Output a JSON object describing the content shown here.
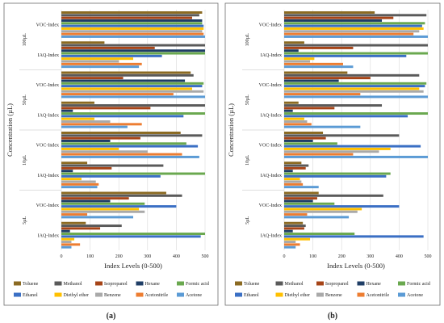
{
  "chart_data": [
    {
      "type": "bar",
      "orientation": "horizontal",
      "panel_label": "(a)",
      "xlabel": "Index Levels (0-500)",
      "ylabel": "Concentration (µL)",
      "xlim": [
        0,
        500
      ],
      "x_ticks": [
        0,
        100,
        200,
        300,
        400,
        500
      ],
      "grid": true,
      "legend_position": "bottom",
      "series_names": [
        "Toluene",
        "Methanol",
        "Isopropanol",
        "Hexane",
        "Formic acid",
        "Ethanol",
        "Diethyl ether",
        "Benzene",
        "Acetonitrile",
        "Acetone"
      ],
      "groups": [
        {
          "label": "100µL",
          "metrics": [
            {
              "name": "VOC-Index",
              "values": [
                490,
                480,
                455,
                490,
                490,
                495,
                495,
                490,
                495,
                500
              ]
            },
            {
              "name": "IAQ-Index",
              "values": [
                150,
                500,
                325,
                500,
                500,
                350,
                250,
                200,
                280,
                270
              ]
            }
          ]
        },
        {
          "label": "50µL",
          "metrics": [
            {
              "name": "VOC-Index",
              "values": [
                450,
                460,
                215,
                430,
                495,
                490,
                455,
                495,
                390,
                500
              ]
            },
            {
              "name": "IAQ-Index",
              "values": [
                115,
                500,
                310,
                40,
                500,
                425,
                115,
                170,
                280,
                230
              ]
            }
          ]
        },
        {
          "label": "10µL",
          "metrics": [
            {
              "name": "VOC-Index",
              "values": [
                415,
                490,
                275,
                170,
                435,
                475,
                200,
                300,
                420,
                480
              ]
            },
            {
              "name": "IAQ-Index",
              "values": [
                90,
                355,
                175,
                40,
                500,
                345,
                70,
                120,
                130,
                125
              ]
            }
          ]
        },
        {
          "label": "5µL",
          "metrics": [
            {
              "name": "VOC-Index",
              "values": [
                365,
                420,
                235,
                170,
                290,
                400,
                270,
                290,
                90,
                250
              ]
            },
            {
              "name": "IAQ-Index",
              "values": [
                85,
                210,
                135,
                30,
                500,
                485,
                45,
                35,
                65,
                35
              ]
            }
          ]
        }
      ]
    },
    {
      "type": "bar",
      "orientation": "horizontal",
      "panel_label": "(b)",
      "xlabel": "Index Levels (0-500)",
      "ylabel": "Concentration (µL)",
      "xlim": [
        0,
        500
      ],
      "x_ticks": [
        0,
        100,
        200,
        300,
        400,
        500
      ],
      "grid": true,
      "legend_position": "bottom",
      "series_names": [
        "Toluene",
        "Methanol",
        "Isopropanol",
        "Hexane",
        "Formic acid",
        "Ethanol",
        "Diethyl ether",
        "Benzene",
        "Acetonitrile",
        "Acetone"
      ],
      "groups": [
        {
          "label": "100µL",
          "metrics": [
            {
              "name": "VOC-Index",
              "values": [
                315,
                495,
                380,
                340,
                490,
                480,
                485,
                470,
                450,
                500
              ]
            },
            {
              "name": "IAQ-Index",
              "values": [
                70,
                500,
                240,
                50,
                500,
                425,
                105,
                90,
                205,
                240
              ]
            }
          ]
        },
        {
          "label": "50µL",
          "metrics": [
            {
              "name": "VOC-Index",
              "values": [
                220,
                470,
                300,
                190,
                495,
                490,
                470,
                485,
                265,
                500
              ]
            },
            {
              "name": "IAQ-Index",
              "values": [
                50,
                340,
                175,
                30,
                500,
                430,
                70,
                80,
                95,
                265
              ]
            }
          ]
        },
        {
          "label": "10µL",
          "metrics": [
            {
              "name": "VOC-Index",
              "values": [
                135,
                400,
                145,
                100,
                185,
                475,
                370,
                330,
                240,
                500
              ]
            },
            {
              "name": "IAQ-Index",
              "values": [
                60,
                85,
                75,
                30,
                370,
                355,
                55,
                60,
                65,
                120
              ]
            }
          ]
        },
        {
          "label": "5µL",
          "metrics": [
            {
              "name": "VOC-Index",
              "values": [
                120,
                345,
                115,
                100,
                175,
                400,
                270,
                255,
                80,
                225
              ]
            },
            {
              "name": "IAQ-Index",
              "values": [
                65,
                75,
                70,
                30,
                245,
                485,
                90,
                40,
                55,
                40
              ]
            }
          ]
        }
      ]
    }
  ],
  "colors": {
    "Toluene": "#8b6a22",
    "Methanol": "#5a5a5a",
    "Isopropanol": "#a64417",
    "Hexane": "#1f3e66",
    "Formic acid": "#6aa84f",
    "Ethanol": "#3a6fc4",
    "Diethyl ether": "#ffc000",
    "Benzene": "#a9a9a9",
    "Acetonitrile": "#ed7d31",
    "Acetone": "#5b9bd5"
  }
}
